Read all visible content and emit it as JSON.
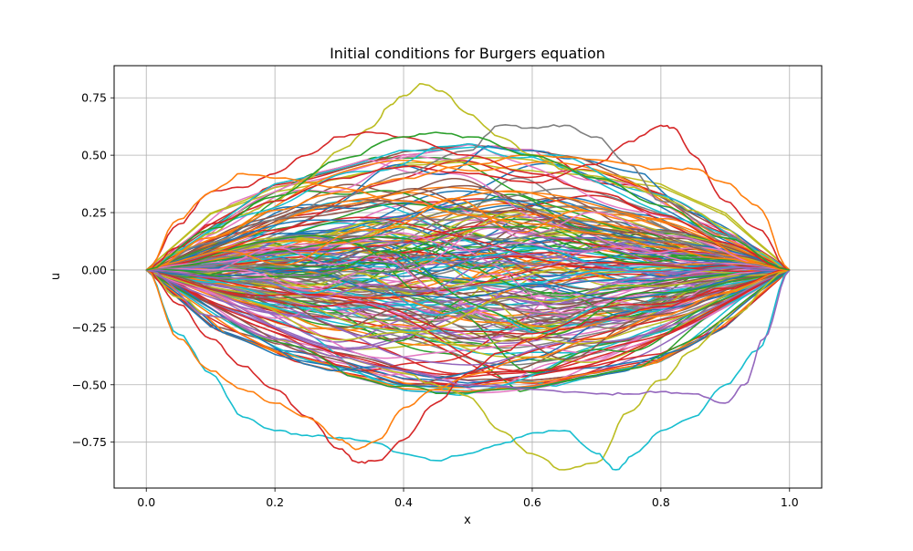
{
  "chart_data": {
    "type": "line",
    "title": "Initial conditions for Burgers equation",
    "xlabel": "x",
    "ylabel": "u",
    "xlim": [
      -0.05,
      1.05
    ],
    "ylim": [
      -0.95,
      0.89
    ],
    "xticks": [
      0.0,
      0.2,
      0.4,
      0.6,
      0.8,
      1.0
    ],
    "xtick_labels": [
      "0.0",
      "0.2",
      "0.4",
      "0.6",
      "0.8",
      "1.0"
    ],
    "yticks": [
      -0.75,
      -0.5,
      -0.25,
      0.0,
      0.25,
      0.5,
      0.75
    ],
    "ytick_labels": [
      "−0.75",
      "−0.50",
      "−0.25",
      "0.00",
      "0.25",
      "0.50",
      "0.75"
    ],
    "grid": true,
    "legend": "none",
    "boundary_values": {
      "x": [
        0.0,
        1.0
      ],
      "u": [
        0.0,
        0.0
      ]
    },
    "series_count": 200,
    "colors": [
      "#1f77b4",
      "#ff7f0e",
      "#2ca02c",
      "#d62728",
      "#9467bd",
      "#8c564b",
      "#e377c2",
      "#7f7f7f",
      "#bcbd22",
      "#17becf"
    ],
    "highlighted_series": [
      {
        "color": "#bcbd22",
        "x": [
          0,
          0.05,
          0.1,
          0.15,
          0.2,
          0.25,
          0.3,
          0.35,
          0.38,
          0.4,
          0.43,
          0.46,
          0.5,
          0.55,
          0.6,
          0.65,
          0.7,
          0.75,
          0.8,
          0.85,
          0.9,
          0.95,
          1.0
        ],
        "values": [
          0,
          0.08,
          0.16,
          0.24,
          0.3,
          0.4,
          0.52,
          0.62,
          0.72,
          0.76,
          0.81,
          0.78,
          0.68,
          0.58,
          0.5,
          0.44,
          0.4,
          0.36,
          0.32,
          0.26,
          0.18,
          0.08,
          0
        ]
      },
      {
        "color": "#bcbd22",
        "x": [
          0,
          0.05,
          0.1,
          0.2,
          0.3,
          0.4,
          0.45,
          0.5,
          0.55,
          0.6,
          0.65,
          0.7,
          0.75,
          0.8,
          0.85,
          0.9,
          1.0
        ],
        "values": [
          0,
          -0.12,
          -0.2,
          -0.3,
          -0.38,
          -0.45,
          -0.5,
          -0.55,
          -0.7,
          -0.8,
          -0.87,
          -0.84,
          -0.62,
          -0.48,
          -0.35,
          -0.22,
          0
        ]
      },
      {
        "color": "#17becf",
        "x": [
          0,
          0.05,
          0.1,
          0.15,
          0.2,
          0.25,
          0.3,
          0.35,
          0.4,
          0.45,
          0.5,
          0.55,
          0.6,
          0.65,
          0.7,
          0.73,
          0.76,
          0.8,
          0.85,
          0.9,
          0.95,
          1.0
        ],
        "values": [
          0,
          -0.28,
          -0.45,
          -0.64,
          -0.7,
          -0.72,
          -0.73,
          -0.75,
          -0.8,
          -0.83,
          -0.8,
          -0.76,
          -0.71,
          -0.7,
          -0.8,
          -0.87,
          -0.8,
          -0.7,
          -0.64,
          -0.5,
          -0.35,
          0
        ]
      },
      {
        "color": "#d62728",
        "x": [
          0,
          0.05,
          0.1,
          0.15,
          0.2,
          0.25,
          0.3,
          0.33,
          0.36,
          0.4,
          0.45,
          0.5,
          0.55,
          0.6,
          0.65,
          0.7,
          0.8,
          0.9,
          1.0
        ],
        "values": [
          0,
          -0.15,
          -0.3,
          -0.42,
          -0.52,
          -0.64,
          -0.78,
          -0.84,
          -0.83,
          -0.74,
          -0.58,
          -0.45,
          -0.36,
          -0.3,
          -0.26,
          -0.22,
          -0.16,
          -0.08,
          0
        ]
      },
      {
        "color": "#ff7f0e",
        "x": [
          0,
          0.05,
          0.1,
          0.15,
          0.2,
          0.25,
          0.3,
          0.33,
          0.36,
          0.4,
          0.45,
          0.5,
          0.6,
          0.7,
          0.8,
          0.9,
          1.0
        ],
        "values": [
          0,
          -0.3,
          -0.44,
          -0.52,
          -0.58,
          -0.64,
          -0.74,
          -0.78,
          -0.74,
          -0.6,
          -0.52,
          -0.46,
          -0.38,
          -0.3,
          -0.2,
          -0.1,
          0
        ]
      },
      {
        "color": "#d62728",
        "x": [
          0,
          0.05,
          0.1,
          0.2,
          0.3,
          0.4,
          0.5,
          0.6,
          0.7,
          0.75,
          0.8,
          0.82,
          0.85,
          0.9,
          0.95,
          1.0
        ],
        "values": [
          0,
          0.1,
          0.2,
          0.3,
          0.4,
          0.45,
          0.42,
          0.38,
          0.46,
          0.56,
          0.63,
          0.62,
          0.5,
          0.3,
          0.18,
          0
        ]
      },
      {
        "color": "#7f7f7f",
        "x": [
          0,
          0.1,
          0.2,
          0.3,
          0.4,
          0.5,
          0.55,
          0.6,
          0.65,
          0.7,
          0.75,
          0.8,
          0.9,
          1.0
        ],
        "values": [
          0,
          0.12,
          0.22,
          0.32,
          0.42,
          0.52,
          0.63,
          0.62,
          0.63,
          0.58,
          0.46,
          0.3,
          0.15,
          0
        ]
      },
      {
        "color": "#ff7f0e",
        "x": [
          0,
          0.1,
          0.2,
          0.3,
          0.4,
          0.5,
          0.6,
          0.7,
          0.8,
          0.85,
          0.9,
          0.95,
          1.0
        ],
        "values": [
          0,
          0.14,
          0.26,
          0.34,
          0.4,
          0.46,
          0.5,
          0.48,
          0.44,
          0.44,
          0.38,
          0.28,
          0
        ]
      },
      {
        "color": "#9467bd",
        "x": [
          0,
          0.1,
          0.2,
          0.3,
          0.4,
          0.5,
          0.6,
          0.7,
          0.75,
          0.8,
          0.85,
          0.9,
          0.93,
          0.96,
          1.0
        ],
        "values": [
          0,
          -0.2,
          -0.3,
          -0.38,
          -0.44,
          -0.5,
          -0.52,
          -0.54,
          -0.54,
          -0.53,
          -0.54,
          -0.58,
          -0.5,
          -0.3,
          0
        ]
      },
      {
        "color": "#d62728",
        "x": [
          0,
          0.05,
          0.1,
          0.15,
          0.2,
          0.25,
          0.3,
          0.35,
          0.4,
          0.5,
          0.6,
          0.7,
          0.8,
          0.9,
          1.0
        ],
        "values": [
          0,
          0.2,
          0.34,
          0.36,
          0.42,
          0.5,
          0.58,
          0.6,
          0.58,
          0.5,
          0.42,
          0.34,
          0.24,
          0.12,
          0
        ]
      },
      {
        "color": "#ff7f0e",
        "x": [
          0,
          0.05,
          0.1,
          0.15,
          0.2,
          0.3,
          0.4,
          0.5,
          0.6,
          0.7,
          0.8,
          0.9,
          1.0
        ],
        "values": [
          0,
          0.22,
          0.34,
          0.42,
          0.4,
          0.36,
          0.3,
          0.24,
          0.2,
          0.16,
          0.1,
          0.05,
          0
        ]
      },
      {
        "color": "#2ca02c",
        "x": [
          0,
          0.1,
          0.2,
          0.3,
          0.4,
          0.45,
          0.5,
          0.6,
          0.7,
          0.8,
          0.9,
          1.0
        ],
        "values": [
          0,
          0.18,
          0.32,
          0.48,
          0.58,
          0.6,
          0.58,
          0.5,
          0.4,
          0.28,
          0.14,
          0
        ]
      }
    ],
    "envelope": {
      "x": [
        0,
        0.1,
        0.2,
        0.3,
        0.4,
        0.5,
        0.6,
        0.7,
        0.8,
        0.9,
        1.0
      ],
      "upper": [
        0,
        0.2,
        0.3,
        0.36,
        0.42,
        0.44,
        0.42,
        0.38,
        0.32,
        0.2,
        0
      ],
      "lower": [
        0,
        -0.2,
        -0.3,
        -0.36,
        -0.42,
        -0.44,
        -0.42,
        -0.38,
        -0.32,
        -0.2,
        0
      ]
    }
  }
}
